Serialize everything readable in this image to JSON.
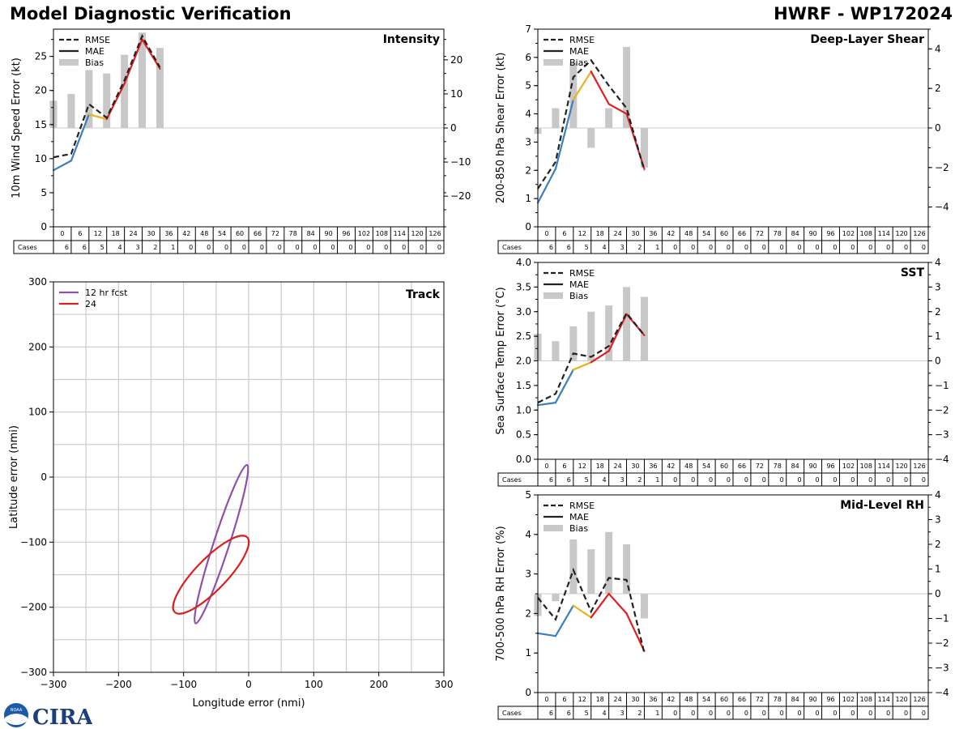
{
  "header": {
    "title": "Model Diagnostic Verification",
    "storm_label": "HWRF - WP172024"
  },
  "logo": {
    "text": "CIRA",
    "small_text": "NOAA"
  },
  "cases": {
    "label": "Cases",
    "hours": [
      0,
      6,
      12,
      18,
      24,
      30,
      36,
      42,
      48,
      54,
      60,
      66,
      72,
      78,
      84,
      90,
      96,
      102,
      108,
      114,
      120,
      126
    ],
    "counts": [
      6,
      6,
      5,
      4,
      3,
      2,
      1,
      0,
      0,
      0,
      0,
      0,
      0,
      0,
      0,
      0,
      0,
      0,
      0,
      0,
      0,
      0
    ]
  },
  "legend_labels": {
    "rmse": "RMSE",
    "mae": "MAE",
    "bias": "Bias"
  },
  "colors": {
    "mae_early": "#3a7fbf",
    "mae_mid": "#e8b21f",
    "mae_late": "#e02020",
    "rmse": "#222222",
    "bias": "#c8c8c8",
    "grid": "#cccccc",
    "track_12": "#9050a8",
    "track_24": "#d82020"
  },
  "chart_data": [
    {
      "id": "intensity",
      "type": "line",
      "title": "Intensity",
      "ylabel": "10m Wind Speed Error (kt)",
      "ylim": [
        0,
        29
      ],
      "yticks": [
        0,
        5,
        10,
        15,
        20,
        25
      ],
      "y2lim": [
        -29,
        29
      ],
      "y2ticks": [
        -20,
        -10,
        0,
        10,
        20
      ],
      "x": [
        0,
        6,
        12,
        18,
        24,
        30,
        36
      ],
      "mae": [
        8.3,
        9.7,
        16.5,
        15.8,
        21.0,
        27.5,
        23.2
      ],
      "rmse": [
        10.2,
        10.7,
        18.0,
        16.0,
        21.5,
        28.0,
        23.4
      ],
      "bias": [
        8.0,
        10.0,
        17.0,
        16.0,
        21.5,
        28.0,
        23.5
      ]
    },
    {
      "id": "shear",
      "type": "line",
      "title": "Deep-Layer Shear",
      "ylabel": "200-850 hPa Shear Error (kt)",
      "ylim": [
        0,
        7
      ],
      "yticks": [
        0,
        1,
        2,
        3,
        4,
        5,
        6,
        7
      ],
      "y2lim": [
        -5,
        5
      ],
      "y2ticks": [
        -4,
        -2,
        0,
        2,
        4
      ],
      "x": [
        0,
        6,
        12,
        18,
        24,
        30,
        36
      ],
      "mae": [
        0.85,
        2.05,
        4.5,
        5.5,
        4.35,
        4.0,
        2.05
      ],
      "rmse": [
        1.35,
        2.3,
        5.3,
        5.9,
        5.0,
        4.2,
        2.0
      ],
      "bias": [
        -0.3,
        1.0,
        3.3,
        -1.0,
        1.0,
        4.1,
        -2.0
      ]
    },
    {
      "id": "sst",
      "type": "line",
      "title": "SST",
      "ylabel": "Sea Surface Temp Error (°C)",
      "ylim": [
        0,
        4
      ],
      "yticks": [
        0.0,
        0.5,
        1.0,
        1.5,
        2.0,
        2.5,
        3.0,
        3.5,
        4.0
      ],
      "y2lim": [
        -4,
        4
      ],
      "y2ticks": [
        -4,
        -3,
        -2,
        -1,
        0,
        1,
        2,
        3,
        4
      ],
      "x": [
        0,
        6,
        12,
        18,
        24,
        30,
        36
      ],
      "mae": [
        1.1,
        1.15,
        1.82,
        1.97,
        2.2,
        2.95,
        2.52
      ],
      "rmse": [
        1.15,
        1.33,
        2.15,
        2.08,
        2.3,
        2.97,
        2.52
      ],
      "bias": [
        1.1,
        0.8,
        1.4,
        2.0,
        2.25,
        3.0,
        2.6
      ]
    },
    {
      "id": "rh",
      "type": "line",
      "title": "Mid-Level RH",
      "ylabel": "700-500 hPa RH Error (%)",
      "ylim": [
        0,
        5
      ],
      "yticks": [
        0,
        1,
        2,
        3,
        4,
        5
      ],
      "y2lim": [
        -4,
        4
      ],
      "y2ticks": [
        -4,
        -3,
        -2,
        -1,
        0,
        1,
        2,
        3,
        4
      ],
      "x": [
        0,
        6,
        12,
        18,
        24,
        30,
        36
      ],
      "mae": [
        1.5,
        1.43,
        2.2,
        1.9,
        2.5,
        2.0,
        1.05
      ],
      "rmse": [
        2.4,
        1.85,
        3.1,
        2.05,
        2.9,
        2.85,
        1.0
      ],
      "bias": [
        -0.9,
        -0.3,
        2.2,
        1.8,
        2.5,
        2.0,
        -1.0
      ]
    },
    {
      "id": "track",
      "type": "scatter",
      "title": "Track",
      "xlabel": "Longitude error (nmi)",
      "ylabel": "Latitude error (nmi)",
      "xlim": [
        -300,
        300
      ],
      "ylim": [
        -300,
        300
      ],
      "xticks": [
        -300,
        -200,
        -100,
        0,
        100,
        200,
        300
      ],
      "yticks": [
        -300,
        -200,
        -100,
        0,
        100,
        200,
        300
      ],
      "legend": [
        "12 hr fcst",
        "24"
      ],
      "ellipses": [
        {
          "label": "12 hr fcst",
          "center": [
            -42,
            -103
          ],
          "semi_major": 128,
          "semi_minor": 12,
          "angle_deg": 72
        },
        {
          "label": "24",
          "center": [
            -58,
            -150
          ],
          "semi_major": 80,
          "semi_minor": 24,
          "angle_deg": 46
        }
      ]
    }
  ]
}
